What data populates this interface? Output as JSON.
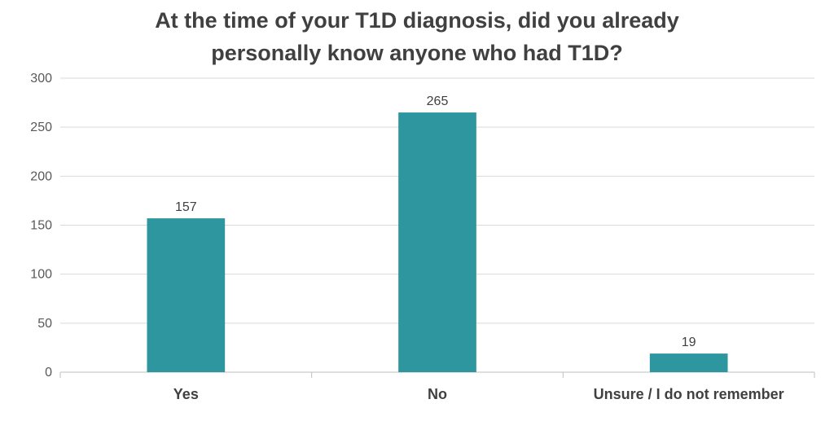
{
  "chart_data": {
    "type": "bar",
    "title_lines": [
      "At the time of your T1D diagnosis, did you already",
      "personally know anyone who had T1D?"
    ],
    "categories": [
      "Yes",
      "No",
      "Unsure / I do not remember"
    ],
    "values": [
      157,
      265,
      19
    ],
    "data_labels": [
      "157",
      "265",
      "19"
    ],
    "ylim": [
      0,
      300
    ],
    "yticks": [
      "0",
      "50",
      "100",
      "150",
      "200",
      "250",
      "300"
    ],
    "grid": true,
    "legend": "none",
    "bar_color": "#2e969f",
    "grid_color": "#d9d9d9",
    "text_color": "#404040"
  }
}
